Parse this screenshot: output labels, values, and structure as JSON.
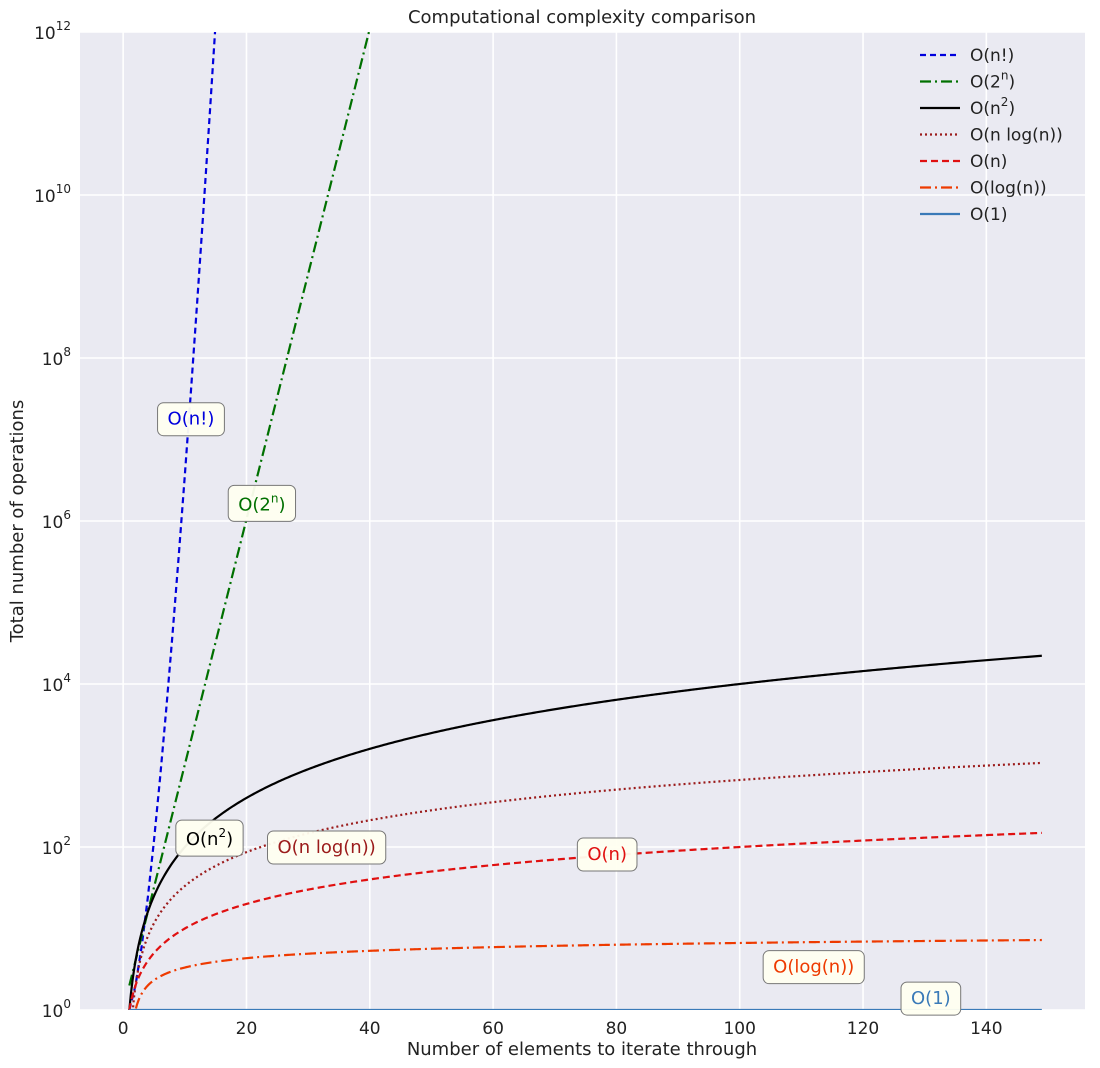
{
  "chart_data": {
    "type": "line",
    "title": "Computational complexity comparison",
    "xlabel": "Number of elements to iterate through",
    "ylabel": "Total number of operations",
    "xlim": [
      -7,
      156
    ],
    "ylim_log10": [
      0,
      12
    ],
    "y_scale": "log",
    "grid": true,
    "legend_position": "top-right",
    "x_ticks": [
      "0",
      "20",
      "40",
      "60",
      "80",
      "100",
      "120",
      "140"
    ],
    "x_tick_values": [
      0,
      20,
      40,
      60,
      80,
      100,
      120,
      140
    ],
    "y_ticks": [
      {
        "base": "10",
        "exp": "0",
        "value": 1
      },
      {
        "base": "10",
        "exp": "2",
        "value": 100
      },
      {
        "base": "10",
        "exp": "4",
        "value": 10000
      },
      {
        "base": "10",
        "exp": "6",
        "value": 1000000
      },
      {
        "base": "10",
        "exp": "8",
        "value": 100000000
      },
      {
        "base": "10",
        "exp": "10",
        "value": 10000000000
      },
      {
        "base": "10",
        "exp": "12",
        "value": 1000000000000
      }
    ],
    "x_range": [
      1,
      149
    ],
    "series": [
      {
        "name": "O(n!)",
        "legend_label": "O(n!)",
        "key": "factorial",
        "color": "#0000dd",
        "dash": "6,4",
        "label_text": "O(n!)",
        "label_x": 11,
        "label_y": 18000000
      },
      {
        "name": "O(2ⁿ)",
        "legend_label": "O(2",
        "legend_sup": "n",
        "key": "exp2",
        "color": "#007000",
        "dash": "11,4,2,4",
        "label_text": "O(2",
        "label_sup": "n",
        "label_x": 22.5,
        "label_y": 1600000
      },
      {
        "name": "O(n²)",
        "legend_label": "O(n",
        "legend_sup": "2",
        "key": "square",
        "color": "#000000",
        "dash": "",
        "label_text": "O(n",
        "label_sup": "2",
        "label_x": 14,
        "label_y": 125
      },
      {
        "name": "O(n log(n))",
        "legend_label": "O(n log(n))",
        "key": "nlogn",
        "color": "#9b1b1b",
        "dash": "2,3",
        "label_text": "O(n log(n))",
        "label_x": 33,
        "label_y": 100
      },
      {
        "name": "O(n)",
        "legend_label": "O(n)",
        "key": "linear",
        "color": "#e01010",
        "dash": "7,4",
        "label_text": "O(n)",
        "label_x": 78.5,
        "label_y": 82
      },
      {
        "name": "O(log(n))",
        "legend_label": "O(log(n))",
        "key": "log",
        "color": "#ee3a00",
        "dash": "11,4,2,4",
        "label_text": "O(log(n))",
        "label_x": 112,
        "label_y": 3.4
      },
      {
        "name": "O(1)",
        "legend_label": "O(1)",
        "key": "const",
        "color": "#3a7ab8",
        "dash": "",
        "label_text": "O(1)",
        "label_x": 131,
        "label_y": 1.4
      }
    ]
  }
}
